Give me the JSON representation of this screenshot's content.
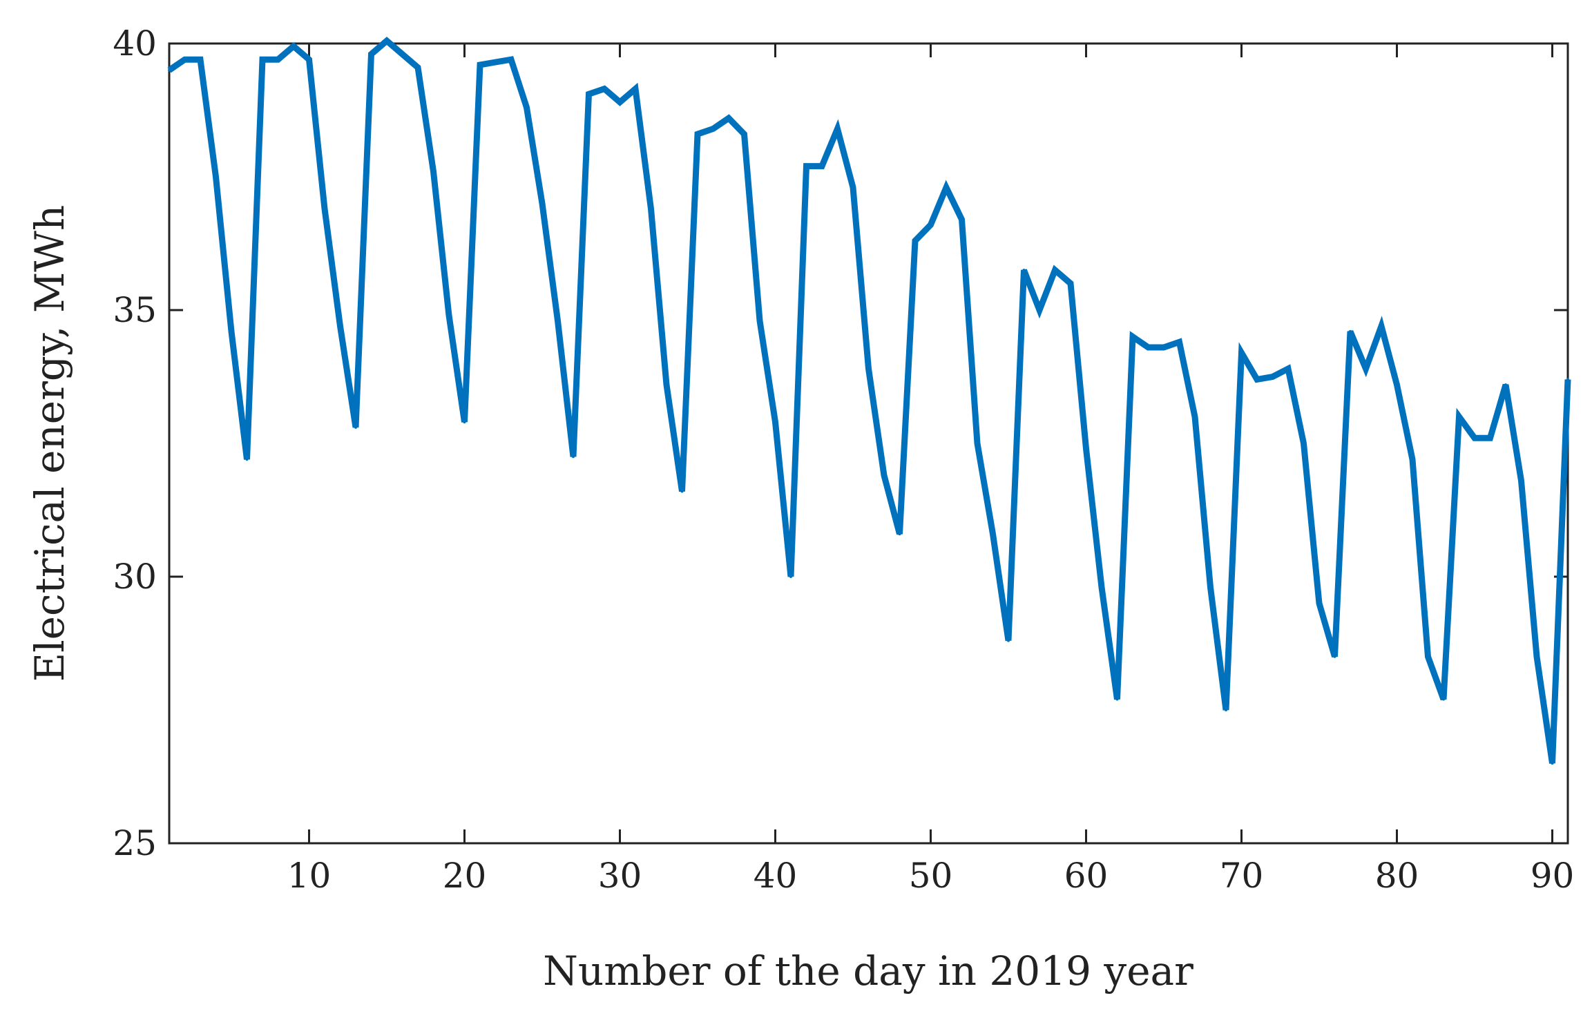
{
  "chart_data": {
    "type": "line",
    "title": "",
    "xlabel": "Number of the day in 2019 year",
    "ylabel": "Electrical energy, MWh",
    "xlim": [
      1,
      91
    ],
    "ylim": [
      25,
      40
    ],
    "xticks": [
      10,
      20,
      30,
      40,
      50,
      60,
      70,
      80,
      90
    ],
    "yticks": [
      25,
      30,
      35,
      40
    ],
    "grid": false,
    "line_color": "#0072BD",
    "series": [
      {
        "name": "Electrical energy",
        "x": [
          1,
          2,
          3,
          4,
          5,
          6,
          7,
          8,
          9,
          10,
          11,
          12,
          13,
          14,
          15,
          16,
          17,
          18,
          19,
          20,
          21,
          22,
          23,
          24,
          25,
          26,
          27,
          28,
          29,
          30,
          31,
          32,
          33,
          34,
          35,
          36,
          37,
          38,
          39,
          40,
          41,
          42,
          43,
          44,
          45,
          46,
          47,
          48,
          49,
          50,
          51,
          52,
          53,
          54,
          55,
          56,
          57,
          58,
          59,
          60,
          61,
          62,
          63,
          64,
          65,
          66,
          67,
          68,
          69,
          70,
          71,
          72,
          73,
          74,
          75,
          76,
          77,
          78,
          79,
          80,
          81,
          82,
          83,
          84,
          85,
          86,
          87,
          88,
          89,
          90,
          91
        ],
        "values": [
          39.5,
          39.7,
          39.7,
          37.5,
          34.6,
          32.2,
          39.7,
          39.7,
          39.95,
          39.7,
          36.9,
          34.7,
          32.8,
          39.8,
          40.05,
          39.8,
          39.55,
          37.6,
          34.9,
          32.9,
          39.6,
          39.65,
          39.7,
          38.8,
          37.0,
          34.8,
          32.25,
          39.05,
          39.15,
          38.9,
          39.15,
          36.9,
          33.6,
          31.6,
          38.3,
          38.4,
          38.6,
          38.3,
          34.8,
          32.9,
          30.0,
          37.7,
          37.7,
          38.4,
          37.3,
          33.9,
          31.9,
          30.8,
          36.3,
          36.6,
          37.3,
          36.7,
          32.5,
          30.8,
          28.8,
          35.75,
          35.0,
          35.75,
          35.5,
          32.4,
          29.8,
          27.7,
          34.5,
          34.3,
          34.3,
          34.4,
          33.0,
          29.8,
          27.5,
          34.2,
          33.7,
          33.75,
          33.9,
          32.5,
          29.5,
          28.5,
          34.6,
          33.9,
          34.7,
          33.6,
          32.2,
          28.5,
          27.7,
          33.0,
          32.6,
          32.6,
          33.6,
          31.8,
          28.5,
          26.5,
          33.7
        ]
      }
    ]
  }
}
